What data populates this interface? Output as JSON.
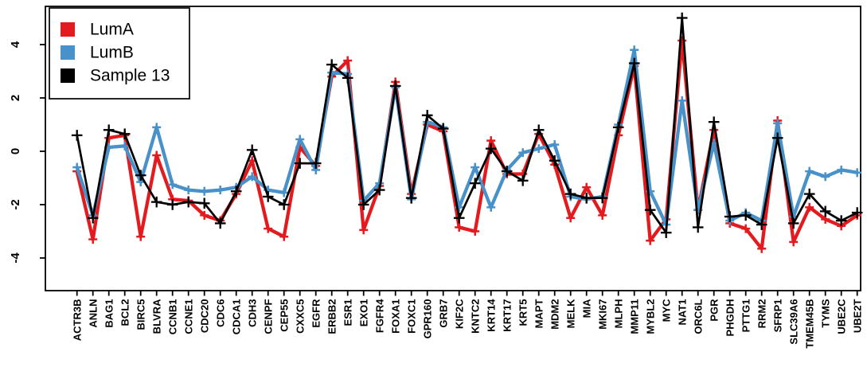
{
  "figure": {
    "kind": "r-line-plot",
    "background": "#ffffff",
    "axis_color": "#000000"
  },
  "legend": {
    "position": "top-left",
    "items": [
      {
        "label": "LumA",
        "color": "#e31b1e",
        "marker": "filled-square"
      },
      {
        "label": "LumB",
        "color": "#4991c9",
        "marker": "filled-square"
      },
      {
        "label": "Sample 13",
        "color": "#000000",
        "marker": "filled-square"
      }
    ]
  },
  "y_axis": {
    "ticks": [
      4,
      2,
      0,
      -2,
      -4
    ],
    "label": ""
  },
  "x_axis": {
    "label": "",
    "tick_label_rotation_deg": -90
  },
  "chart_data": {
    "type": "line",
    "title": "",
    "xlabel": "",
    "ylabel": "",
    "grid": false,
    "legend_position": "top-left",
    "marker": "plus",
    "ylim": [
      -5.2,
      5.4
    ],
    "yticks": [
      -4,
      -2,
      0,
      2,
      4
    ],
    "categories": [
      "ACTR3B",
      "ANLN",
      "BAG1",
      "BCL2",
      "BIRC5",
      "BLVRA",
      "CCNB1",
      "CCNE1",
      "CDC20",
      "CDC6",
      "CDCA1",
      "CDH3",
      "CENPF",
      "CEP55",
      "CXXC5",
      "EGFR",
      "ERBB2",
      "ESR1",
      "EXO1",
      "FGFR4",
      "FOXA1",
      "FOXC1",
      "GPR160",
      "GRB7",
      "KIF2C",
      "KNTC2",
      "KRT14",
      "KRT17",
      "KRT5",
      "MAPT",
      "MDM2",
      "MELK",
      "MIA",
      "MKI67",
      "MLPH",
      "MMP11",
      "MYBL2",
      "MYC",
      "NAT1",
      "ORC6L",
      "PGR",
      "PHGDH",
      "PTTG1",
      "RRM2",
      "SFRP1",
      "SLC39A6",
      "TMEM45B",
      "TYMS",
      "UBE2C",
      "UBE2T"
    ],
    "series": [
      {
        "name": "LumA",
        "color": "#e31b1e",
        "line_width": 4.3,
        "values": [
          -0.75,
          -3.3,
          0.5,
          0.6,
          -3.2,
          -0.15,
          -1.8,
          -1.85,
          -2.4,
          -2.6,
          -1.6,
          -0.35,
          -2.9,
          -3.2,
          0.15,
          -0.55,
          2.8,
          3.4,
          -2.95,
          -1.3,
          2.6,
          -1.6,
          1.0,
          0.75,
          -2.85,
          -3.0,
          0.4,
          -0.85,
          -0.85,
          0.65,
          -0.5,
          -2.5,
          -1.35,
          -2.4,
          0.6,
          3.2,
          -3.35,
          -2.55,
          4.15,
          -2.2,
          0.8,
          -2.7,
          -2.9,
          -3.65,
          1.15,
          -3.4,
          -2.1,
          -2.55,
          -2.8,
          -2.4
        ]
      },
      {
        "name": "LumB",
        "color": "#4991c9",
        "line_width": 4.3,
        "values": [
          -0.6,
          -2.4,
          0.15,
          0.2,
          -1.15,
          0.9,
          -1.25,
          -1.45,
          -1.5,
          -1.45,
          -1.35,
          -0.95,
          -1.45,
          -1.55,
          0.45,
          -0.7,
          2.95,
          2.9,
          -1.85,
          -1.2,
          2.4,
          -1.8,
          1.1,
          0.9,
          -2.1,
          -0.6,
          -2.1,
          -0.7,
          -0.05,
          0.1,
          0.25,
          -1.7,
          -1.8,
          -1.7,
          1.0,
          3.8,
          -1.5,
          -2.75,
          1.9,
          -2.2,
          0.3,
          -2.6,
          -2.3,
          -2.6,
          1.05,
          -2.45,
          -0.75,
          -0.95,
          -0.7,
          -0.8
        ]
      },
      {
        "name": "Sample 13",
        "color": "#000000",
        "line_width": 2.7,
        "values": [
          0.6,
          -2.5,
          0.8,
          0.65,
          -0.9,
          -1.9,
          -2.0,
          -1.9,
          -1.95,
          -2.7,
          -1.5,
          0.05,
          -1.7,
          -2.0,
          -0.45,
          -0.45,
          3.25,
          2.75,
          -2.0,
          -1.45,
          2.45,
          -1.75,
          1.35,
          0.85,
          -2.5,
          -1.2,
          0.1,
          -0.75,
          -1.1,
          0.8,
          -0.35,
          -1.6,
          -1.75,
          -1.75,
          0.9,
          3.3,
          -2.2,
          -3.05,
          5.0,
          -2.85,
          1.1,
          -2.45,
          -2.4,
          -2.75,
          0.5,
          -2.7,
          -1.6,
          -2.25,
          -2.6,
          -2.3
        ]
      }
    ]
  }
}
